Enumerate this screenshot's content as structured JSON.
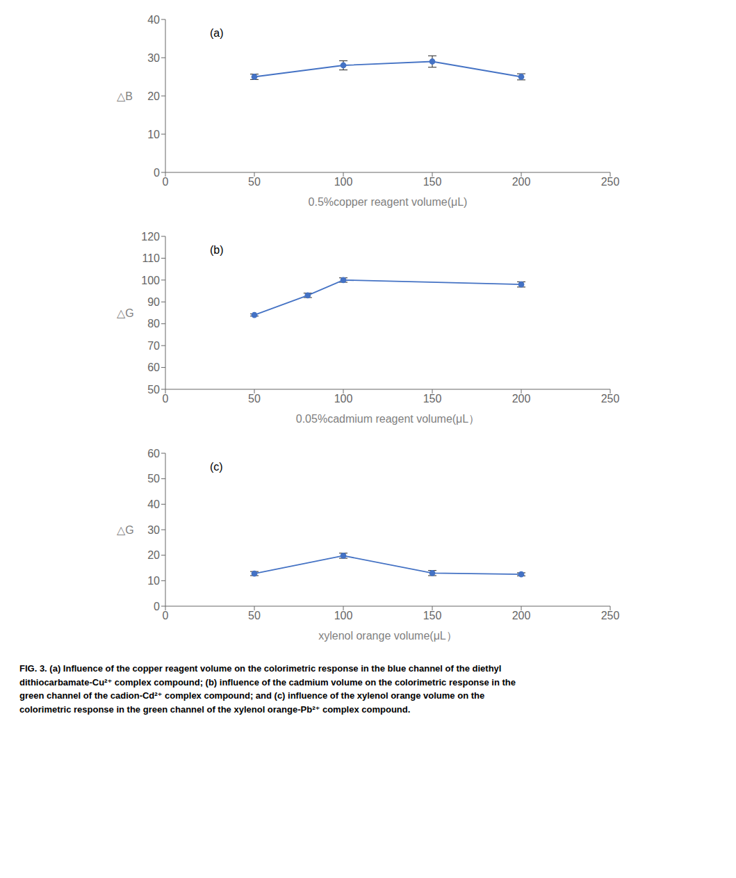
{
  "chart_data": [
    {
      "type": "line",
      "x": [
        50,
        100,
        150,
        200
      ],
      "values": [
        25.0,
        28.0,
        29.0,
        25.0
      ],
      "errors": [
        0.7,
        1.2,
        1.5,
        0.8
      ],
      "xlabel": "0.5%copper reagent volume(μL)",
      "ylabel": "△B",
      "annotation": "(a)",
      "xlim": [
        0,
        250
      ],
      "ylim": [
        0,
        40
      ],
      "xticks": [
        0,
        50,
        100,
        150,
        200,
        250
      ],
      "yticks": [
        0,
        10,
        20,
        30,
        40
      ],
      "color": "#4472C4",
      "marker": "circle"
    },
    {
      "type": "line",
      "x": [
        50,
        80,
        100,
        200
      ],
      "values": [
        84.0,
        93.0,
        100.0,
        98.0
      ],
      "errors": [
        0.5,
        1.0,
        1.0,
        1.2
      ],
      "xlabel": "0.05%cadmium  reagent volume(μL）",
      "ylabel": "△G",
      "annotation": "(b)",
      "xlim": [
        0,
        250
      ],
      "ylim": [
        50,
        120
      ],
      "xticks": [
        0,
        50,
        100,
        150,
        200,
        250
      ],
      "yticks": [
        50,
        60,
        70,
        80,
        90,
        100,
        110,
        120
      ],
      "color": "#4472C4",
      "marker": "circle"
    },
    {
      "type": "line",
      "x": [
        50,
        100,
        150,
        200
      ],
      "values": [
        12.8,
        19.8,
        13.0,
        12.5
      ],
      "errors": [
        0.8,
        1.0,
        1.0,
        0.6
      ],
      "xlabel": "xylenol orange  volume(μL）",
      "ylabel": "△G",
      "annotation": "(c)",
      "xlim": [
        0,
        250
      ],
      "ylim": [
        0,
        60
      ],
      "xticks": [
        0,
        50,
        100,
        150,
        200,
        250
      ],
      "yticks": [
        0,
        10,
        20,
        30,
        40,
        50,
        60
      ],
      "color": "#4472C4",
      "marker": "circle"
    }
  ],
  "caption": "FIG. 3. (a) Influence of the copper reagent volume on the colorimetric response in the blue channel of the diethyl\ndithiocarbamate-Cu²⁺ complex compound; (b) influence of the cadmium volume on the colorimetric response in the\ngreen channel of the cadion-Cd²⁺ complex compound; and (c) influence of the xylenol orange volume on the\ncolorimetric response in the green channel of the xylenol orange-Pb²⁺ complex compound."
}
